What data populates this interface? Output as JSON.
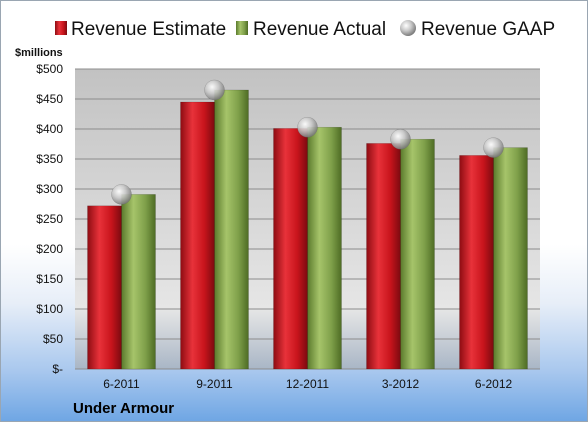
{
  "chart_data": {
    "type": "bar",
    "unit_label": "$millions",
    "company": "Under Armour",
    "categories": [
      "6-2011",
      "9-2011",
      "12-2011",
      "3-2012",
      "6-2012"
    ],
    "y_ticks": [
      "$-",
      "$50",
      "$100",
      "$150",
      "$200",
      "$250",
      "$300",
      "$350",
      "$400",
      "$450",
      "$500"
    ],
    "ylim": [
      0,
      500
    ],
    "grid": true,
    "legend_position": "top",
    "series": [
      {
        "name": "Revenue Estimate",
        "kind": "bar",
        "color": "#c8141c",
        "values": [
          272,
          445,
          401,
          376,
          356
        ]
      },
      {
        "name": "Revenue Actual",
        "kind": "bar",
        "color": "#7fa04a",
        "values": [
          291,
          465,
          403,
          383,
          369
        ]
      },
      {
        "name": "Revenue GAAP",
        "kind": "marker",
        "color": "#b9b9b9",
        "values": [
          291,
          465,
          403,
          383,
          369
        ]
      }
    ]
  }
}
